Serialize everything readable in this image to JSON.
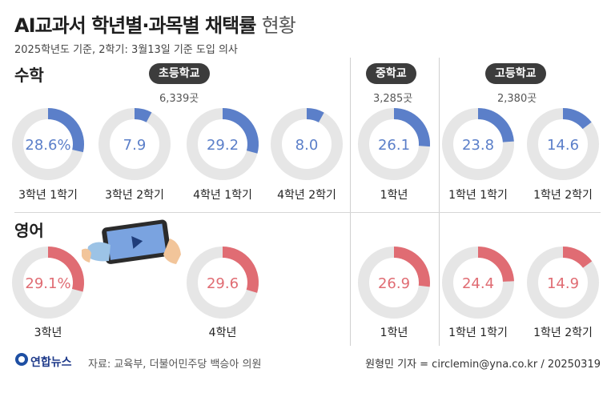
{
  "title": "AI교과서 학년별·과목별 채택률",
  "title_suffix": "현황",
  "subtitle": "2025학년도 기준, 2학기: 3월13일 기준 도입 의사",
  "sections": {
    "math": "수학",
    "english": "영어"
  },
  "schools": [
    {
      "name": "초등학교",
      "count": "6,339곳"
    },
    {
      "name": "중학교",
      "count": "3,285곳"
    },
    {
      "name": "고등학교",
      "count": "2,380곳"
    }
  ],
  "colors": {
    "math": "#5b7fc9",
    "english": "#e06c73",
    "track": "#e6e6e6"
  },
  "chart_data": [
    {
      "type": "donut",
      "subject": "수학",
      "unit": "%",
      "items": [
        {
          "school": "초등학교",
          "label": "3학년 1학기",
          "value": 28.6,
          "value_text": "28.6%"
        },
        {
          "school": "초등학교",
          "label": "3학년 2학기",
          "value": 7.9,
          "value_text": "7.9"
        },
        {
          "school": "초등학교",
          "label": "4학년 1학기",
          "value": 29.2,
          "value_text": "29.2"
        },
        {
          "school": "초등학교",
          "label": "4학년 2학기",
          "value": 8.0,
          "value_text": "8.0"
        },
        {
          "school": "중학교",
          "label": "1학년",
          "value": 26.1,
          "value_text": "26.1"
        },
        {
          "school": "고등학교",
          "label": "1학년 1학기",
          "value": 23.8,
          "value_text": "23.8"
        },
        {
          "school": "고등학교",
          "label": "1학년 2학기",
          "value": 14.6,
          "value_text": "14.6"
        }
      ]
    },
    {
      "type": "donut",
      "subject": "영어",
      "unit": "%",
      "items": [
        {
          "school": "초등학교",
          "label": "3학년",
          "value": 29.1,
          "value_text": "29.1%"
        },
        {
          "school": "초등학교",
          "label": "4학년",
          "value": 29.6,
          "value_text": "29.6"
        },
        {
          "school": "중학교",
          "label": "1학년",
          "value": 26.9,
          "value_text": "26.9"
        },
        {
          "school": "고등학교",
          "label": "1학년 1학기",
          "value": 24.4,
          "value_text": "24.4"
        },
        {
          "school": "고등학교",
          "label": "1학년 2학기",
          "value": 14.9,
          "value_text": "14.9"
        }
      ]
    }
  ],
  "footer": {
    "logo": "연합뉴스",
    "source": "자료: 교육부, 더불어민주당 백승아 의원",
    "credit": "원형민 기자 = circlemin@yna.co.kr / 20250319"
  }
}
